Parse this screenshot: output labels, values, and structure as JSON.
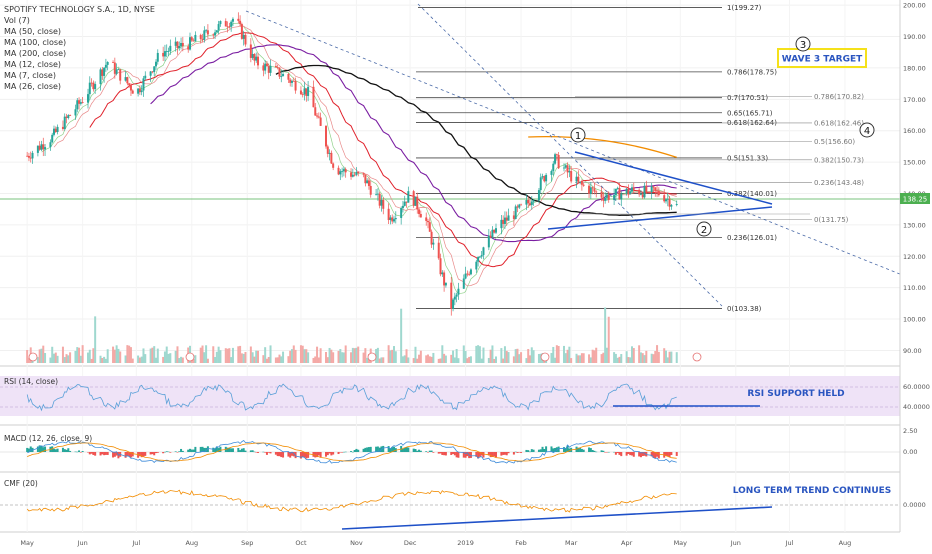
{
  "header": {
    "title": "SPOTIFY TECHNOLOGY S.A., 1D, NYSE",
    "indicators": [
      "Vol (7)",
      "MA (50, close)",
      "MA (100, close)",
      "MA (200, close)",
      "MA (12, close)",
      "MA (7, close)",
      "MA (26, close)"
    ]
  },
  "chart_data": {
    "type": "candlestick",
    "symbol": "SPOTIFY TECHNOLOGY S.A.",
    "interval": "1D",
    "exchange": "NYSE",
    "x_axis_labels": [
      "May",
      "Jun",
      "Jul",
      "Aug",
      "Sep",
      "Oct",
      "Nov",
      "Dec",
      "2019",
      "Feb",
      "Mar",
      "Apr",
      "May",
      "Jun",
      "Jul",
      "Aug"
    ],
    "price_axis": {
      "ticks": [
        90,
        100,
        110,
        120,
        130,
        140,
        150,
        160,
        170,
        180,
        190,
        200
      ],
      "ylim": [
        86,
        201
      ]
    },
    "last_price": "138.25",
    "price_path": [
      {
        "x": "2018-05-01",
        "y": 152
      },
      {
        "x": "2018-05-15",
        "y": 158
      },
      {
        "x": "2018-06-01",
        "y": 170
      },
      {
        "x": "2018-06-15",
        "y": 182
      },
      {
        "x": "2018-07-01",
        "y": 172
      },
      {
        "x": "2018-07-15",
        "y": 185
      },
      {
        "x": "2018-08-01",
        "y": 188
      },
      {
        "x": "2018-08-10",
        "y": 191
      },
      {
        "x": "2018-08-25",
        "y": 196
      },
      {
        "x": "2018-09-05",
        "y": 182
      },
      {
        "x": "2018-09-20",
        "y": 178
      },
      {
        "x": "2018-10-05",
        "y": 172
      },
      {
        "x": "2018-10-20",
        "y": 148
      },
      {
        "x": "2018-11-05",
        "y": 145
      },
      {
        "x": "2018-11-20",
        "y": 132
      },
      {
        "x": "2018-12-01",
        "y": 140
      },
      {
        "x": "2018-12-10",
        "y": 131
      },
      {
        "x": "2018-12-24",
        "y": 104
      },
      {
        "x": "2019-01-05",
        "y": 118
      },
      {
        "x": "2019-01-20",
        "y": 130
      },
      {
        "x": "2019-02-05",
        "y": 137
      },
      {
        "x": "2019-02-20",
        "y": 151
      },
      {
        "x": "2019-03-05",
        "y": 143
      },
      {
        "x": "2019-03-20",
        "y": 139
      },
      {
        "x": "2019-04-05",
        "y": 141
      },
      {
        "x": "2019-04-20",
        "y": 140
      },
      {
        "x": "2019-04-29",
        "y": 136
      }
    ],
    "fib_levels_left": [
      {
        "label": "1(199.27)",
        "value": 199.27
      },
      {
        "label": "0.786(178.75)",
        "value": 178.75
      },
      {
        "label": "0.7(170.51)",
        "value": 170.51
      },
      {
        "label": "0.65(165.71)",
        "value": 165.71
      },
      {
        "label": "0.618(162.64)",
        "value": 162.64
      },
      {
        "label": "0.5(151.33)",
        "value": 151.33
      },
      {
        "label": "0.382(140.01)",
        "value": 140.01
      },
      {
        "label": "0.236(126.01)",
        "value": 126.01
      },
      {
        "label": "0(103.38)",
        "value": 103.38
      }
    ],
    "fib_levels_right": [
      {
        "label": "0.786(170.82)",
        "value": 170.82
      },
      {
        "label": "0.618(162.46)",
        "value": 162.46
      },
      {
        "label": "0.5(156.60)",
        "value": 156.6
      },
      {
        "label": "0.382(150.73)",
        "value": 150.73
      },
      {
        "label": "0.236(143.48)",
        "value": 143.48
      },
      {
        "label": "0(131.75)",
        "value": 131.75
      }
    ],
    "wave_labels": [
      "1",
      "2",
      "3",
      "4"
    ],
    "annotations": [
      "WAVE 3 TARGET",
      "RSI SUPPORT HELD",
      "LONG TERM TREND CONTINUES"
    ],
    "rsi": {
      "title": "RSI (14, close)",
      "ticks": [
        "60.0000",
        "40.0000"
      ]
    },
    "macd": {
      "title": "MACD (12, 26, close, 9)",
      "ticks": [
        "2.50",
        "0.00"
      ]
    },
    "cmf": {
      "title": "CMF (20)",
      "ticks": [
        "0.0000"
      ]
    },
    "colors": {
      "up": "#26a69a",
      "down": "#ef5350",
      "ma_red": "#e0212b",
      "ma_purple": "#7b1fa2",
      "ma_black": "#111111",
      "ma_orange": "#f28c00",
      "trend_blue": "#1e50c8",
      "last_price_bg": "#4caf50"
    }
  }
}
